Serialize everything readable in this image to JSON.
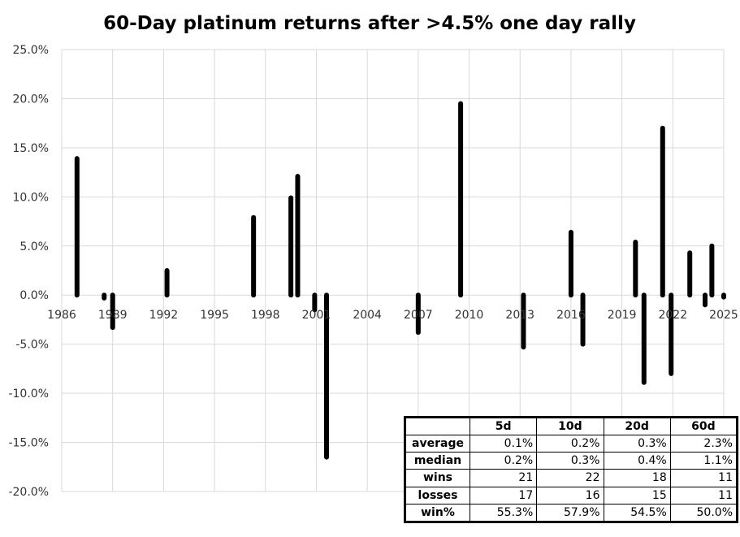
{
  "chart_data": {
    "type": "bar",
    "title": "60-Day platinum returns after >4.5% one day rally",
    "xlabel": "",
    "ylabel": "",
    "xlim": [
      1986,
      2025
    ],
    "ylim": [
      -0.2,
      0.25
    ],
    "y_ticks": [
      0.25,
      0.2,
      0.15,
      0.1,
      0.05,
      0.0,
      -0.05,
      -0.1,
      -0.15,
      -0.2
    ],
    "y_tick_labels": [
      "25.0%",
      "20.0%",
      "15.0%",
      "10.0%",
      "5.0%",
      "0.0%",
      "-5.0%",
      "-10.0%",
      "-15.0%",
      "-20.0%"
    ],
    "x_ticks": [
      1986,
      1989,
      1992,
      1995,
      1998,
      2001,
      2004,
      2007,
      2010,
      2013,
      2016,
      2019,
      2022,
      2025
    ],
    "x_tick_labels": [
      "1986",
      "1989",
      "1992",
      "1995",
      "1998",
      "2001",
      "2004",
      "2007",
      "2010",
      "2013",
      "2016",
      "2019",
      "2022",
      "2025"
    ],
    "grid": true,
    "bar_color": "#000000",
    "points": [
      {
        "x": 1986.9,
        "y": 0.139
      },
      {
        "x": 1988.5,
        "y": -0.003
      },
      {
        "x": 1989.0,
        "y": -0.033
      },
      {
        "x": 1992.2,
        "y": 0.025
      },
      {
        "x": 1997.3,
        "y": 0.079
      },
      {
        "x": 1999.5,
        "y": 0.099
      },
      {
        "x": 1999.9,
        "y": 0.121
      },
      {
        "x": 2000.9,
        "y": -0.015
      },
      {
        "x": 2001.6,
        "y": -0.165
      },
      {
        "x": 2007.0,
        "y": -0.038
      },
      {
        "x": 2009.5,
        "y": 0.195
      },
      {
        "x": 2013.2,
        "y": -0.053
      },
      {
        "x": 2016.0,
        "y": 0.064
      },
      {
        "x": 2016.7,
        "y": -0.05
      },
      {
        "x": 2019.8,
        "y": 0.054
      },
      {
        "x": 2020.3,
        "y": -0.089
      },
      {
        "x": 2021.4,
        "y": 0.17
      },
      {
        "x": 2021.9,
        "y": -0.08
      },
      {
        "x": 2023.0,
        "y": 0.043
      },
      {
        "x": 2023.9,
        "y": -0.01
      },
      {
        "x": 2024.3,
        "y": 0.05
      },
      {
        "x": 2025.0,
        "y": -0.002
      }
    ]
  },
  "stats_table": {
    "headers": [
      "",
      "5d",
      "10d",
      "20d",
      "60d"
    ],
    "rows": [
      {
        "label": "average",
        "values": [
          "0.1%",
          "0.2%",
          "0.3%",
          "2.3%"
        ]
      },
      {
        "label": "median",
        "values": [
          "0.2%",
          "0.3%",
          "0.4%",
          "1.1%"
        ]
      },
      {
        "label": "wins",
        "values": [
          "21",
          "22",
          "18",
          "11"
        ]
      },
      {
        "label": "losses",
        "values": [
          "17",
          "16",
          "15",
          "11"
        ]
      },
      {
        "label": "win%",
        "values": [
          "55.3%",
          "57.9%",
          "54.5%",
          "50.0%"
        ]
      }
    ]
  }
}
